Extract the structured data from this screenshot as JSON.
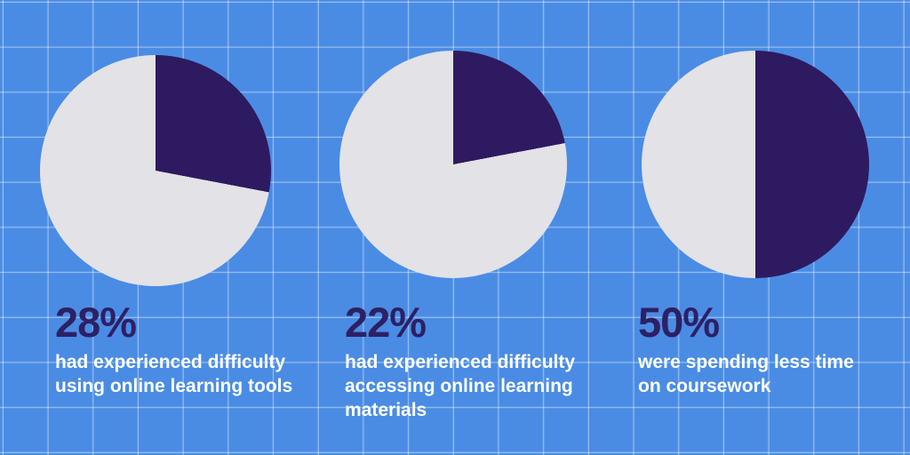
{
  "palette": {
    "background": "#4a8ce4",
    "grid_line": "rgba(255,255,255,0.38)",
    "slice_filled": "#2e1a60",
    "slice_remainder": "#e3e2e6",
    "stat_text": "#2d2065",
    "description_text": "#ffffff"
  },
  "chart_data": [
    {
      "type": "pie",
      "values": [
        28,
        72
      ],
      "labels": [
        "filled",
        "remainder"
      ],
      "value_pct": 28,
      "start_angle_deg": 0,
      "direction": "clockwise",
      "colors": {
        "filled": "#2e1a60",
        "remainder": "#e3e2e6"
      },
      "stat_label": "28%",
      "description": "had experienced difficulty\nusing online learning tools"
    },
    {
      "type": "pie",
      "values": [
        22,
        78
      ],
      "labels": [
        "filled",
        "remainder"
      ],
      "value_pct": 22,
      "start_angle_deg": 0,
      "direction": "clockwise",
      "colors": {
        "filled": "#2e1a60",
        "remainder": "#e3e2e6"
      },
      "stat_label": "22%",
      "description": "had experienced difficulty\naccessing online learning\nmaterials"
    },
    {
      "type": "pie",
      "values": [
        50,
        50
      ],
      "labels": [
        "filled",
        "remainder"
      ],
      "value_pct": 50,
      "start_angle_deg": 0,
      "direction": "clockwise",
      "colors": {
        "filled": "#2e1a60",
        "remainder": "#e3e2e6"
      },
      "stat_label": "50%",
      "description": "were spending less time\non coursework"
    }
  ]
}
